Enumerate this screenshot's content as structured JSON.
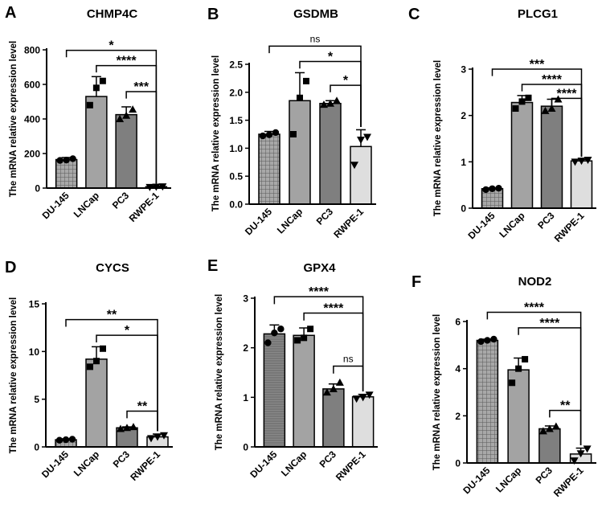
{
  "colors": {
    "DU-145": "#9a9a9a",
    "LNCap": "#a3a3a3",
    "PC3": "#7f7f7f",
    "RWPE-1": "#dedede"
  },
  "chart_data": [
    {
      "panel": "A",
      "title": "CHMP4C",
      "type": "bar",
      "ylabel": "The mRNA relative expression level",
      "ylim": [
        0,
        800
      ],
      "yticks": [
        0,
        200,
        400,
        600,
        800
      ],
      "categories": [
        "DU-145",
        "LNCap",
        "PC3",
        "RWPE-1"
      ],
      "values": [
        165,
        530,
        425,
        8
      ],
      "errors": [
        12,
        115,
        45,
        3
      ],
      "points": [
        [
          160,
          162,
          170
        ],
        [
          480,
          580,
          620
        ],
        [
          400,
          420,
          455
        ],
        [
          5,
          7,
          9
        ]
      ],
      "markers": [
        "circle",
        "square",
        "triangle",
        "triangle-down"
      ],
      "comparisons": [
        {
          "from": 0,
          "to": 3,
          "label": "*"
        },
        {
          "from": 1,
          "to": 3,
          "label": "****"
        },
        {
          "from": 2,
          "to": 3,
          "label": "***"
        }
      ]
    },
    {
      "panel": "B",
      "title": "GSDMB",
      "type": "bar",
      "ylabel": "The mRNA relative expression level",
      "ylim": [
        0,
        2.5
      ],
      "yticks": [
        0.0,
        0.5,
        1.0,
        1.5,
        2.0,
        2.5
      ],
      "categories": [
        "DU-145",
        "LNCap",
        "PC3",
        "RWPE-1"
      ],
      "values": [
        1.25,
        1.85,
        1.8,
        1.03
      ],
      "errors": [
        0.05,
        0.5,
        0.05,
        0.3
      ],
      "points": [
        [
          1.22,
          1.24,
          1.28
        ],
        [
          1.25,
          1.9,
          2.2
        ],
        [
          1.78,
          1.8,
          1.85
        ],
        [
          0.7,
          1.15,
          1.2
        ]
      ],
      "markers": [
        "circle",
        "square",
        "triangle",
        "triangle-down"
      ],
      "comparisons": [
        {
          "from": 0,
          "to": 3,
          "label": "ns"
        },
        {
          "from": 1,
          "to": 3,
          "label": "*"
        },
        {
          "from": 2,
          "to": 3,
          "label": "*"
        }
      ]
    },
    {
      "panel": "C",
      "title": "PLCG1",
      "type": "bar",
      "ylabel": "The mRNA relative expression level",
      "ylim": [
        0,
        3
      ],
      "yticks": [
        0,
        1,
        2,
        3
      ],
      "categories": [
        "DU-145",
        "LNCap",
        "PC3",
        "RWPE-1"
      ],
      "values": [
        0.42,
        2.28,
        2.2,
        1.02
      ],
      "errors": [
        0.02,
        0.15,
        0.15,
        0.03
      ],
      "points": [
        [
          0.4,
          0.42,
          0.43
        ],
        [
          2.15,
          2.3,
          2.38
        ],
        [
          2.1,
          2.15,
          2.35
        ],
        [
          1.0,
          1.02,
          1.04
        ]
      ],
      "markers": [
        "circle",
        "square",
        "triangle",
        "triangle-down"
      ],
      "comparisons": [
        {
          "from": 0,
          "to": 3,
          "label": "***"
        },
        {
          "from": 1,
          "to": 3,
          "label": "****"
        },
        {
          "from": 2,
          "to": 3,
          "label": "****"
        }
      ]
    },
    {
      "panel": "D",
      "title": "CYCS",
      "type": "bar",
      "ylabel": "The mRNA relative expression level",
      "ylim": [
        0,
        15
      ],
      "yticks": [
        0,
        5,
        10,
        15
      ],
      "categories": [
        "DU-145",
        "LNCap",
        "PC3",
        "RWPE-1"
      ],
      "values": [
        0.75,
        9.2,
        2.0,
        1.05
      ],
      "errors": [
        0.1,
        1.3,
        0.1,
        0.3
      ],
      "points": [
        [
          0.7,
          0.75,
          0.8
        ],
        [
          8.4,
          9.0,
          10.3
        ],
        [
          1.9,
          2.0,
          2.1
        ],
        [
          0.9,
          1.05,
          1.2
        ]
      ],
      "markers": [
        "circle",
        "square",
        "triangle",
        "triangle-down"
      ],
      "comparisons": [
        {
          "from": 0,
          "to": 3,
          "label": "**"
        },
        {
          "from": 1,
          "to": 3,
          "label": "*"
        },
        {
          "from": 2,
          "to": 3,
          "label": "**"
        }
      ]
    },
    {
      "panel": "E",
      "title": "GPX4",
      "type": "bar",
      "ylabel": "The mRNA relative expression level",
      "ylim": [
        0,
        3
      ],
      "yticks": [
        0,
        1,
        2,
        3
      ],
      "categories": [
        "DU-145",
        "LNCap",
        "PC3",
        "RWPE-1"
      ],
      "values": [
        2.28,
        2.25,
        1.17,
        1.01
      ],
      "errors": [
        0.18,
        0.15,
        0.1,
        0.05
      ],
      "points": [
        [
          2.1,
          2.3,
          2.38
        ],
        [
          2.15,
          2.2,
          2.38
        ],
        [
          1.1,
          1.17,
          1.3
        ],
        [
          0.97,
          1.0,
          1.05
        ]
      ],
      "markers": [
        "circle",
        "square",
        "triangle",
        "triangle-down"
      ],
      "comparisons": [
        {
          "from": 0,
          "to": 3,
          "label": "****"
        },
        {
          "from": 1,
          "to": 3,
          "label": "****"
        },
        {
          "from": 2,
          "to": 3,
          "label": "ns"
        }
      ]
    },
    {
      "panel": "F",
      "title": "NOD2",
      "type": "bar",
      "ylabel": "The mRNA relative expression level",
      "ylim": [
        0,
        6
      ],
      "yticks": [
        0,
        2,
        4,
        6
      ],
      "categories": [
        "DU-145",
        "LNCap",
        "PC3",
        "RWPE-1"
      ],
      "values": [
        5.2,
        3.95,
        1.45,
        0.38
      ],
      "errors": [
        0.05,
        0.5,
        0.12,
        0.25
      ],
      "points": [
        [
          5.15,
          5.2,
          5.25
        ],
        [
          3.4,
          4.0,
          4.4
        ],
        [
          1.35,
          1.45,
          1.55
        ],
        [
          0.1,
          0.4,
          0.6
        ]
      ],
      "markers": [
        "circle",
        "square",
        "triangle",
        "triangle-down"
      ],
      "comparisons": [
        {
          "from": 0,
          "to": 3,
          "label": "****"
        },
        {
          "from": 1,
          "to": 3,
          "label": "****"
        },
        {
          "from": 2,
          "to": 3,
          "label": "**"
        }
      ]
    }
  ]
}
